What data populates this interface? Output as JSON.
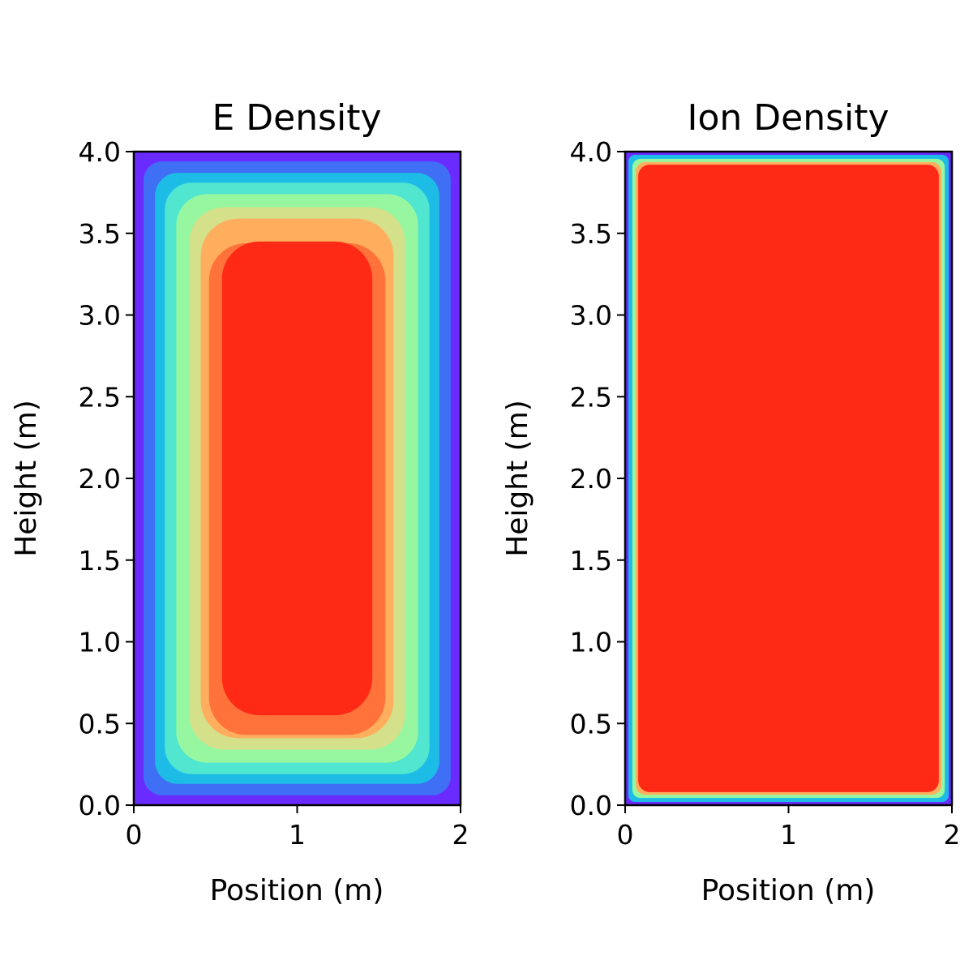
{
  "chart_data": [
    {
      "type": "heatmap",
      "plot_style": "filled-contour",
      "title": "E Density",
      "xlabel": "Position (m)",
      "ylabel": "Height (m)",
      "xlim": [
        0,
        2
      ],
      "ylim": [
        0,
        4
      ],
      "xticks": [
        "0",
        "1",
        "2"
      ],
      "yticks": [
        "0.0",
        "0.5",
        "1.0",
        "1.5",
        "2.0",
        "2.5",
        "3.0",
        "3.5",
        "4.0"
      ],
      "colormap": "rainbow",
      "levels": [
        {
          "x": [
            0.0,
            2.0
          ],
          "y": [
            0.0,
            4.0
          ],
          "color": "#6a2bff"
        },
        {
          "x": [
            0.06,
            1.94
          ],
          "y": [
            0.06,
            3.94
          ],
          "color": "#3f6ff4"
        },
        {
          "x": [
            0.13,
            1.87
          ],
          "y": [
            0.13,
            3.87
          ],
          "color": "#1cbce6"
        },
        {
          "x": [
            0.19,
            1.81
          ],
          "y": [
            0.19,
            3.81
          ],
          "color": "#50e6d0"
        },
        {
          "x": [
            0.26,
            1.74
          ],
          "y": [
            0.26,
            3.74
          ],
          "color": "#96f7a0"
        },
        {
          "x": [
            0.34,
            1.66
          ],
          "y": [
            0.34,
            3.66
          ],
          "color": "#d4e08a"
        },
        {
          "x": [
            0.41,
            1.59
          ],
          "y": [
            0.41,
            3.59
          ],
          "color": "#ffae5e"
        },
        {
          "x": [
            0.46,
            1.54
          ],
          "y": [
            0.43,
            3.44
          ],
          "color": "#ff733b"
        },
        {
          "x": [
            0.54,
            1.46
          ],
          "y": [
            0.55,
            3.45
          ],
          "color": "#ff2a16"
        }
      ]
    },
    {
      "type": "heatmap",
      "plot_style": "image",
      "title": "Ion Density",
      "xlabel": "Position (m)",
      "ylabel": "Height (m)",
      "xlim": [
        0,
        2
      ],
      "ylim": [
        0,
        4
      ],
      "xticks": [
        "0",
        "1",
        "2"
      ],
      "yticks": [
        "0.0",
        "0.5",
        "1.0",
        "1.5",
        "2.0",
        "2.5",
        "3.0",
        "3.5",
        "4.0"
      ],
      "colormap": "rainbow",
      "colors": {
        "edge": "#6a2bff",
        "ring1": "#1cbce6",
        "ring2": "#96f7a0",
        "ring3": "#ffae5e",
        "interior": "#ff2a16"
      },
      "boundary_layer_width": 0.08
    }
  ]
}
